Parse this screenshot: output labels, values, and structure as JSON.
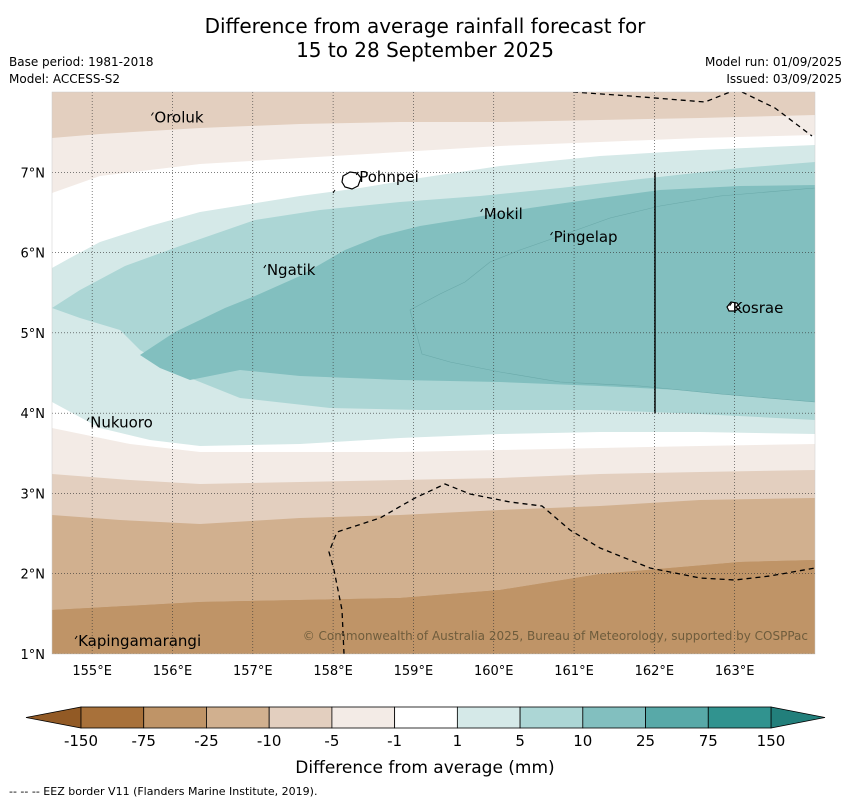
{
  "title": {
    "line1": "Difference from average rainfall forecast for",
    "line2": "15 to 28 September 2025"
  },
  "meta": {
    "base_period": "Base period: 1981-2018",
    "model": "Model: ACCESS-S2",
    "model_run": "Model run: 01/09/2025",
    "issued": "Issued: 03/09/2025"
  },
  "map": {
    "lon_range": [
      154.5,
      164.0
    ],
    "lat_range": [
      1.0,
      8.0
    ],
    "x_ticks": [
      {
        "lon": 155,
        "label": "155°E"
      },
      {
        "lon": 156,
        "label": "156°E"
      },
      {
        "lon": 157,
        "label": "157°E"
      },
      {
        "lon": 158,
        "label": "158°E"
      },
      {
        "lon": 159,
        "label": "159°E"
      },
      {
        "lon": 160,
        "label": "160°E"
      },
      {
        "lon": 161,
        "label": "161°E"
      },
      {
        "lon": 162,
        "label": "162°E"
      },
      {
        "lon": 163,
        "label": "163°E"
      }
    ],
    "y_ticks": [
      {
        "lat": 7,
        "label": "7°N"
      },
      {
        "lat": 6,
        "label": "6°N"
      },
      {
        "lat": 5,
        "label": "5°N"
      },
      {
        "lat": 4,
        "label": "4°N"
      },
      {
        "lat": 3,
        "label": "3°N"
      },
      {
        "lat": 2,
        "label": "2°N"
      },
      {
        "lat": 1,
        "label": "1°N"
      }
    ],
    "places": [
      {
        "name": "Oroluk",
        "lon": 155.75,
        "lat": 7.62
      },
      {
        "name": "Pohnpei",
        "lon": 158.3,
        "lat": 6.88
      },
      {
        "name": "Mokil",
        "lon": 159.85,
        "lat": 6.42
      },
      {
        "name": "Pingelap",
        "lon": 160.72,
        "lat": 6.13
      },
      {
        "name": "Ngatik",
        "lon": 157.15,
        "lat": 5.72
      },
      {
        "name": "Kosrae",
        "lon": 162.95,
        "lat": 5.25
      },
      {
        "name": "Nukuoro",
        "lon": 154.95,
        "lat": 3.82
      },
      {
        "name": "Kapingamarangi",
        "lon": 154.8,
        "lat": 1.1
      }
    ],
    "copyright": "© Commonwealth of Australia 2025, Bureau of Meteorology, supported by COSPPac"
  },
  "legend": {
    "levels": [
      "-150",
      "-75",
      "-25",
      "-10",
      "-5",
      "-1",
      "1",
      "5",
      "10",
      "25",
      "75",
      "150"
    ],
    "colors": [
      "#a8713a",
      "#bf9467",
      "#d1b08f",
      "#e3cfbf",
      "#f3ebe6",
      "#ffffff",
      "#d5e9e8",
      "#acd6d5",
      "#82bfbf",
      "#58a9a8",
      "#31938f"
    ],
    "low_extend_color": "#925a25",
    "high_extend_color": "#227f7b",
    "label": "Difference from average (mm)"
  },
  "footer": "--  --  -- EEZ border V11 (Flanders Marine Institute, 2019)."
}
